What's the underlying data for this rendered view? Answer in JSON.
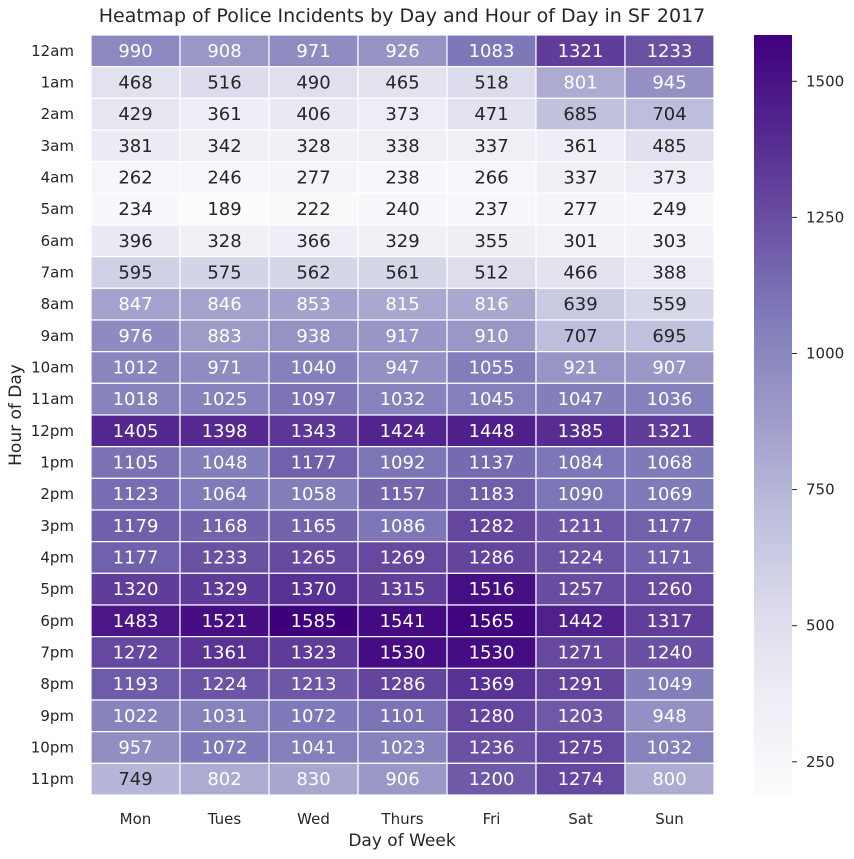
{
  "chart_data": {
    "type": "heatmap",
    "title": "Heatmap of Police Incidents by Day and Hour of Day in SF 2017",
    "xlabel": "Day of Week",
    "ylabel": "Hour of Day",
    "x_categories": [
      "Mon",
      "Tues",
      "Wed",
      "Thurs",
      "Fri",
      "Sat",
      "Sun"
    ],
    "y_categories": [
      "12am",
      "1am",
      "2am",
      "3am",
      "4am",
      "5am",
      "6am",
      "7am",
      "8am",
      "9am",
      "10am",
      "11am",
      "12pm",
      "1pm",
      "2pm",
      "3pm",
      "4pm",
      "5pm",
      "6pm",
      "7pm",
      "8pm",
      "9pm",
      "10pm",
      "11pm"
    ],
    "values": [
      [
        990,
        908,
        971,
        926,
        1083,
        1321,
        1233
      ],
      [
        468,
        516,
        490,
        465,
        518,
        801,
        945
      ],
      [
        429,
        361,
        406,
        373,
        471,
        685,
        704
      ],
      [
        381,
        342,
        328,
        338,
        337,
        361,
        485
      ],
      [
        262,
        246,
        277,
        238,
        266,
        337,
        373
      ],
      [
        234,
        189,
        222,
        240,
        237,
        277,
        249
      ],
      [
        396,
        328,
        366,
        329,
        355,
        301,
        303
      ],
      [
        595,
        575,
        562,
        561,
        512,
        466,
        388
      ],
      [
        847,
        846,
        853,
        815,
        816,
        639,
        559
      ],
      [
        976,
        883,
        938,
        917,
        910,
        707,
        695
      ],
      [
        1012,
        971,
        1040,
        947,
        1055,
        921,
        907
      ],
      [
        1018,
        1025,
        1097,
        1032,
        1045,
        1047,
        1036
      ],
      [
        1405,
        1398,
        1343,
        1424,
        1448,
        1385,
        1321
      ],
      [
        1105,
        1048,
        1177,
        1092,
        1137,
        1084,
        1068
      ],
      [
        1123,
        1064,
        1058,
        1157,
        1183,
        1090,
        1069
      ],
      [
        1179,
        1168,
        1165,
        1086,
        1282,
        1211,
        1177
      ],
      [
        1177,
        1233,
        1265,
        1269,
        1286,
        1224,
        1171
      ],
      [
        1320,
        1329,
        1370,
        1315,
        1516,
        1257,
        1260
      ],
      [
        1483,
        1521,
        1585,
        1541,
        1565,
        1442,
        1317
      ],
      [
        1272,
        1361,
        1323,
        1530,
        1530,
        1271,
        1240
      ],
      [
        1193,
        1224,
        1213,
        1286,
        1369,
        1291,
        1049
      ],
      [
        1022,
        1031,
        1072,
        1101,
        1280,
        1203,
        948
      ],
      [
        957,
        1072,
        1041,
        1023,
        1236,
        1275,
        1032
      ],
      [
        749,
        802,
        830,
        906,
        1200,
        1274,
        800
      ]
    ],
    "colormap": "Purples",
    "vmin": 189,
    "vmax": 1585,
    "colorbar_ticks": [
      250,
      500,
      750,
      1000,
      1250,
      1500
    ],
    "colorbar_tick_labels": [
      "250",
      "500",
      "750",
      "1000",
      "1250",
      "1500"
    ],
    "annotations": true,
    "cell_border_color": "#ffffff"
  }
}
